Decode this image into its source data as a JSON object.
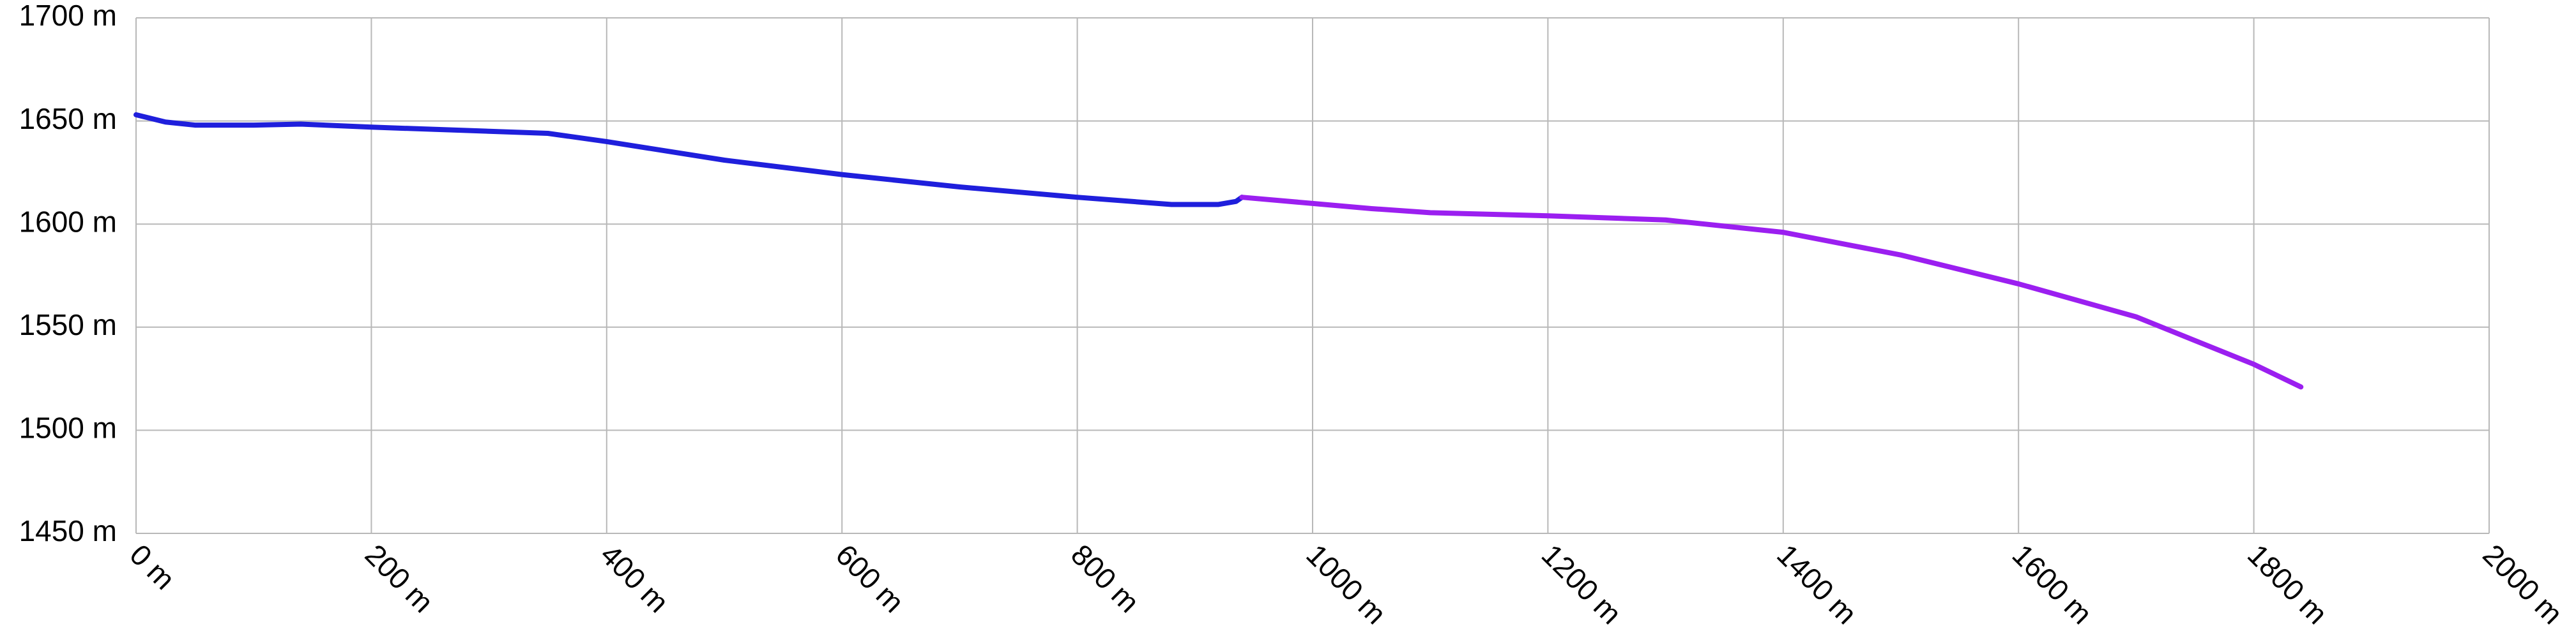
{
  "chart_data": {
    "type": "line",
    "xlim": [
      0,
      2000
    ],
    "ylim": [
      1450,
      1700
    ],
    "xticks": [
      {
        "value": 0,
        "label": "0 m"
      },
      {
        "value": 200,
        "label": "200 m"
      },
      {
        "value": 400,
        "label": "400 m"
      },
      {
        "value": 600,
        "label": "600 m"
      },
      {
        "value": 800,
        "label": "800 m"
      },
      {
        "value": 1000,
        "label": "1000 m"
      },
      {
        "value": 1200,
        "label": "1200 m"
      },
      {
        "value": 1400,
        "label": "1400 m"
      },
      {
        "value": 1600,
        "label": "1600 m"
      },
      {
        "value": 1800,
        "label": "1800 m"
      },
      {
        "value": 2000,
        "label": "2000 m"
      }
    ],
    "yticks": [
      {
        "value": 1450,
        "label": "1450 m"
      },
      {
        "value": 1500,
        "label": "1500 m"
      },
      {
        "value": 1550,
        "label": "1550 m"
      },
      {
        "value": 1600,
        "label": "1600 m"
      },
      {
        "value": 1650,
        "label": "1650 m"
      },
      {
        "value": 1700,
        "label": "1700 m"
      }
    ],
    "grid": true,
    "series": [
      {
        "color": "#1f1fdc",
        "x": [
          0,
          25,
          50,
          100,
          140,
          200,
          300,
          350,
          400,
          500,
          600,
          700,
          800,
          880,
          920,
          935,
          940
        ],
        "values": [
          1653,
          1649.5,
          1648,
          1648,
          1648.5,
          1647,
          1645,
          1644,
          1640,
          1631,
          1624,
          1618,
          1613,
          1609.5,
          1609.5,
          1611,
          1613
        ]
      },
      {
        "color": "#9b1ff0",
        "x": [
          940,
          1000,
          1050,
          1100,
          1200,
          1300,
          1400,
          1500,
          1600,
          1700,
          1800,
          1840
        ],
        "values": [
          1613,
          1610,
          1607.5,
          1605.5,
          1604,
          1602,
          1596,
          1585,
          1571,
          1555,
          1532,
          1521
        ]
      }
    ]
  }
}
